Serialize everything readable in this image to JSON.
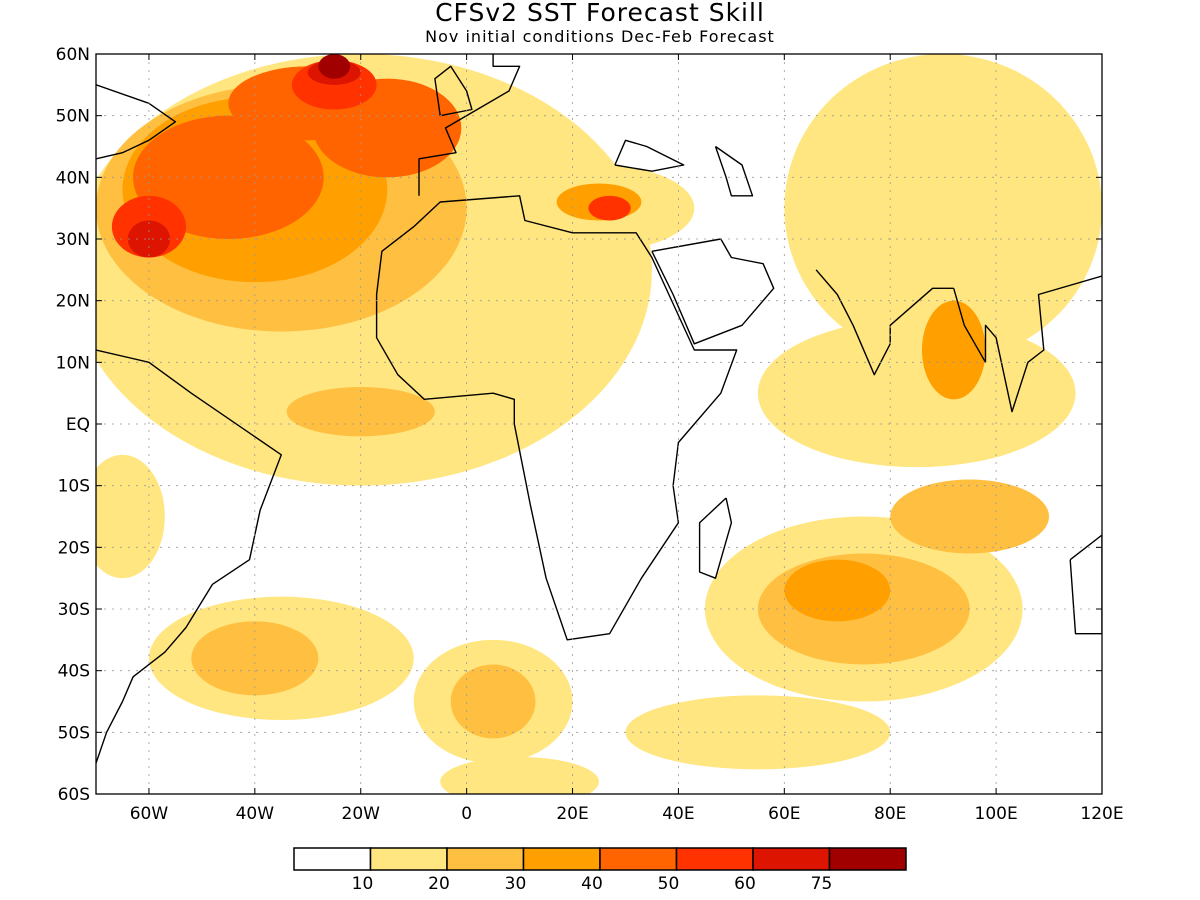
{
  "title": "CFSv2 SST Forecast Skill",
  "subtitle": "Nov initial conditions  Dec-Feb Forecast",
  "map": {
    "lon_range": [
      -70,
      120
    ],
    "lat_range": [
      -60,
      60
    ],
    "lat_ticks": [
      {
        "value": 60,
        "label": "60N"
      },
      {
        "value": 50,
        "label": "50N"
      },
      {
        "value": 40,
        "label": "40N"
      },
      {
        "value": 30,
        "label": "30N"
      },
      {
        "value": 20,
        "label": "20N"
      },
      {
        "value": 10,
        "label": "10N"
      },
      {
        "value": 0,
        "label": "EQ"
      },
      {
        "value": -10,
        "label": "10S"
      },
      {
        "value": -20,
        "label": "20S"
      },
      {
        "value": -30,
        "label": "30S"
      },
      {
        "value": -40,
        "label": "40S"
      },
      {
        "value": -50,
        "label": "50S"
      },
      {
        "value": -60,
        "label": "60S"
      }
    ],
    "lon_ticks": [
      {
        "value": -60,
        "label": "60W"
      },
      {
        "value": -40,
        "label": "40W"
      },
      {
        "value": -20,
        "label": "20W"
      },
      {
        "value": 0,
        "label": "0"
      },
      {
        "value": 20,
        "label": "20E"
      },
      {
        "value": 40,
        "label": "40E"
      },
      {
        "value": 60,
        "label": "60E"
      },
      {
        "value": 80,
        "label": "80E"
      },
      {
        "value": 100,
        "label": "100E"
      },
      {
        "value": 120,
        "label": "120E"
      }
    ]
  },
  "colorbar": {
    "colors": [
      "#ffffff",
      "#ffe680",
      "#ffbf40",
      "#ff9f00",
      "#ff6400",
      "#ff3200",
      "#dc1400",
      "#a00000"
    ],
    "labels": [
      "10",
      "20",
      "30",
      "40",
      "50",
      "60",
      "75"
    ]
  },
  "skill_regions": [
    {
      "level": 1,
      "lon": -20,
      "lat": 25,
      "rx": 55,
      "ry": 35
    },
    {
      "level": 1,
      "lon": 25,
      "lat": 35,
      "rx": 18,
      "ry": 7
    },
    {
      "level": 1,
      "lon": 90,
      "lat": 35,
      "rx": 30,
      "ry": 25
    },
    {
      "level": 1,
      "lon": 85,
      "lat": 5,
      "rx": 30,
      "ry": 12
    },
    {
      "level": 1,
      "lon": 75,
      "lat": -30,
      "rx": 30,
      "ry": 15
    },
    {
      "level": 1,
      "lon": -35,
      "lat": -38,
      "rx": 25,
      "ry": 10
    },
    {
      "level": 1,
      "lon": 5,
      "lat": -45,
      "rx": 15,
      "ry": 10
    },
    {
      "level": 1,
      "lon": -65,
      "lat": -15,
      "rx": 8,
      "ry": 10
    },
    {
      "level": 1,
      "lon": 55,
      "lat": -50,
      "rx": 25,
      "ry": 6
    },
    {
      "level": 1,
      "lon": 10,
      "lat": -58,
      "rx": 15,
      "ry": 4
    },
    {
      "level": 2,
      "lon": -35,
      "lat": 35,
      "rx": 35,
      "ry": 20
    },
    {
      "level": 2,
      "lon": 75,
      "lat": -30,
      "rx": 20,
      "ry": 9
    },
    {
      "level": 2,
      "lon": 95,
      "lat": -15,
      "rx": 15,
      "ry": 6
    },
    {
      "level": 2,
      "lon": -40,
      "lat": -38,
      "rx": 12,
      "ry": 6
    },
    {
      "level": 2,
      "lon": 5,
      "lat": -45,
      "rx": 8,
      "ry": 6
    },
    {
      "level": 2,
      "lon": -20,
      "lat": 2,
      "rx": 14,
      "ry": 4
    },
    {
      "level": 3,
      "lon": -40,
      "lat": 38,
      "rx": 25,
      "ry": 15
    },
    {
      "level": 3,
      "lon": 92,
      "lat": 12,
      "rx": 6,
      "ry": 8
    },
    {
      "level": 3,
      "lon": 25,
      "lat": 36,
      "rx": 8,
      "ry": 3
    },
    {
      "level": 3,
      "lon": 70,
      "lat": -27,
      "rx": 10,
      "ry": 5
    },
    {
      "level": 4,
      "lon": -45,
      "lat": 40,
      "rx": 18,
      "ry": 10
    },
    {
      "level": 4,
      "lon": -15,
      "lat": 48,
      "rx": 14,
      "ry": 8
    },
    {
      "level": 4,
      "lon": -30,
      "lat": 52,
      "rx": 15,
      "ry": 6
    },
    {
      "level": 5,
      "lon": -60,
      "lat": 32,
      "rx": 7,
      "ry": 5
    },
    {
      "level": 5,
      "lon": -25,
      "lat": 55,
      "rx": 8,
      "ry": 4
    },
    {
      "level": 5,
      "lon": 27,
      "lat": 35,
      "rx": 4,
      "ry": 2
    },
    {
      "level": 6,
      "lon": -60,
      "lat": 30,
      "rx": 4,
      "ry": 3
    },
    {
      "level": 6,
      "lon": -25,
      "lat": 57,
      "rx": 5,
      "ry": 2
    },
    {
      "level": 7,
      "lon": -25,
      "lat": 58,
      "rx": 3,
      "ry": 2
    }
  ]
}
